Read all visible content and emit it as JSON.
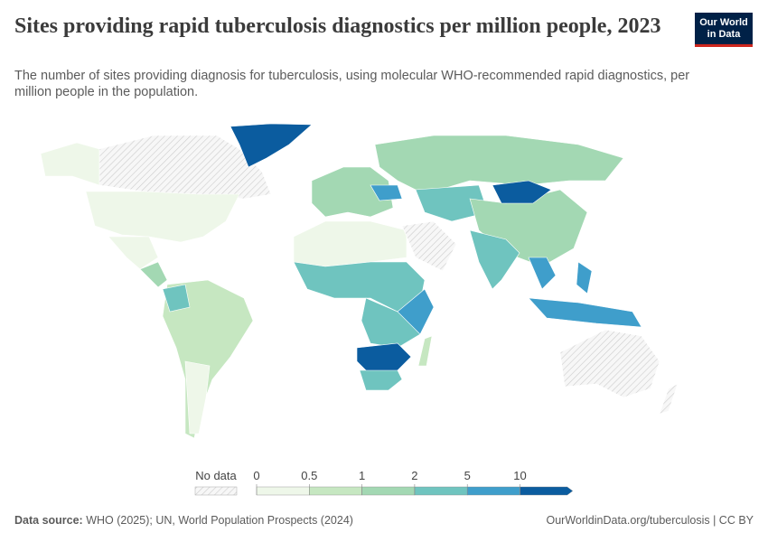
{
  "header": {
    "title": "Sites providing rapid tuberculosis diagnostics per million people, 2023",
    "subtitle": "The number of sites providing diagnosis for tuberculosis, using molecular WHO-recommended rapid diagnostics, per million people in the population.",
    "logo": [
      "Our World",
      "in Data"
    ]
  },
  "legend": {
    "no_data_label": "No data",
    "ticks": [
      0,
      0.5,
      1,
      2,
      5,
      10
    ],
    "colors": [
      "#eef7e9",
      "#c6e7c1",
      "#a3d8b3",
      "#6fc4bf",
      "#3f9ecb",
      "#0b5c9f"
    ]
  },
  "footer": {
    "source_label": "Data source:",
    "source": "WHO (2025); UN, World Population Prospects (2024)",
    "link": "OurWorldinData.org/tuberculosis | CC BY"
  }
}
